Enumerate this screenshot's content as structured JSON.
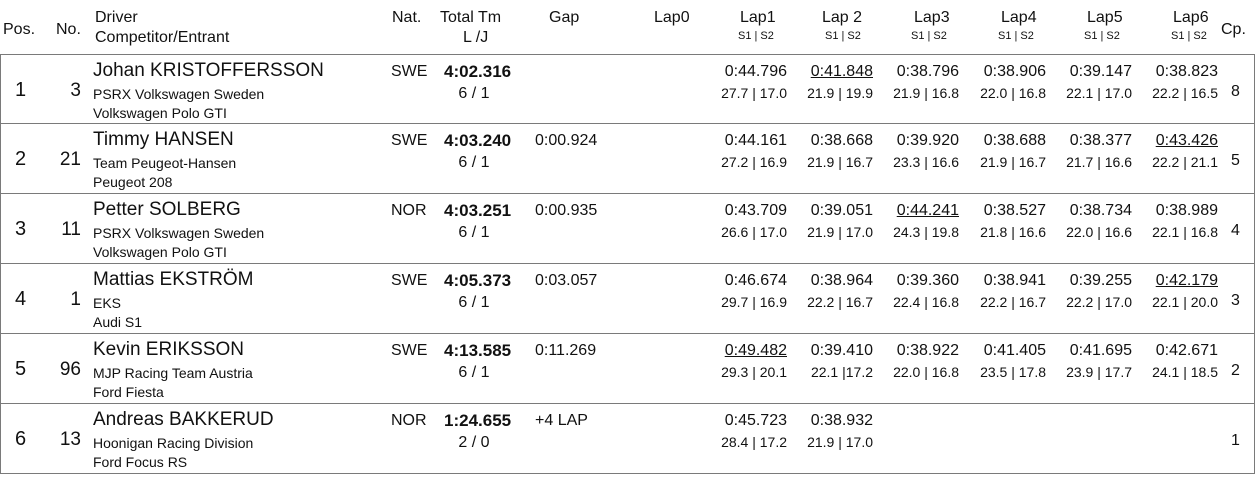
{
  "header": {
    "pos": "Pos.",
    "no": "No.",
    "driver": "Driver",
    "competitor": "Competitor/Entrant",
    "nat": "Nat.",
    "total": "Total Tm",
    "lj": "L /J",
    "gap": "Gap",
    "lap0": "Lap0",
    "laps": [
      "Lap1",
      "Lap 2",
      "Lap3",
      "Lap4",
      "Lap5",
      "Lap6"
    ],
    "split": "S1 | S2",
    "cp": "Cp."
  },
  "rows": [
    {
      "pos": "1",
      "no": "3",
      "driver": "Johan KRISTOFFERSSON",
      "team": "PSRX Volkswagen Sweden",
      "car": "Volkswagen Polo GTI",
      "nat": "SWE",
      "total": "4:02.316",
      "lj": "6 / 1",
      "gap": "",
      "laps": [
        {
          "t": "0:44.796",
          "s": "27.7 | 17.0"
        },
        {
          "t": "0:41.848",
          "s": "21.9 | 19.9",
          "u": true
        },
        {
          "t": "0:38.796",
          "s": "21.9 | 16.8"
        },
        {
          "t": "0:38.906",
          "s": "22.0 | 16.8"
        },
        {
          "t": "0:39.147",
          "s": "22.1 | 17.0"
        },
        {
          "t": "0:38.823",
          "s": "22.2 | 16.5"
        }
      ],
      "cp": "8"
    },
    {
      "pos": "2",
      "no": "21",
      "driver": "Timmy HANSEN",
      "team": "Team Peugeot-Hansen",
      "car": "Peugeot 208",
      "nat": "SWE",
      "total": "4:03.240",
      "lj": "6 / 1",
      "gap": "0:00.924",
      "laps": [
        {
          "t": "0:44.161",
          "s": "27.2 | 16.9"
        },
        {
          "t": "0:38.668",
          "s": "21.9 | 16.7"
        },
        {
          "t": "0:39.920",
          "s": "23.3 | 16.6"
        },
        {
          "t": "0:38.688",
          "s": "21.9 | 16.7"
        },
        {
          "t": "0:38.377",
          "s": "21.7 | 16.6"
        },
        {
          "t": "0:43.426",
          "s": "22.2 | 21.1",
          "u": true
        }
      ],
      "cp": "5"
    },
    {
      "pos": "3",
      "no": "11",
      "driver": "Petter SOLBERG",
      "team": "PSRX Volkswagen Sweden",
      "car": "Volkswagen Polo GTI",
      "nat": "NOR",
      "total": "4:03.251",
      "lj": "6 / 1",
      "gap": "0:00.935",
      "laps": [
        {
          "t": "0:43.709",
          "s": "26.6 | 17.0"
        },
        {
          "t": "0:39.051",
          "s": "21.9 | 17.0"
        },
        {
          "t": "0:44.241",
          "s": "24.3 | 19.8",
          "u": true
        },
        {
          "t": "0:38.527",
          "s": "21.8 | 16.6"
        },
        {
          "t": "0:38.734",
          "s": "22.0 | 16.6"
        },
        {
          "t": "0:38.989",
          "s": "22.1 | 16.8"
        }
      ],
      "cp": "4"
    },
    {
      "pos": "4",
      "no": "1",
      "driver": "Mattias EKSTRÖM",
      "team": "EKS",
      "car": "Audi S1",
      "nat": "SWE",
      "total": "4:05.373",
      "lj": "6 / 1",
      "gap": "0:03.057",
      "laps": [
        {
          "t": "0:46.674",
          "s": "29.7 | 16.9"
        },
        {
          "t": "0:38.964",
          "s": "22.2 | 16.7"
        },
        {
          "t": "0:39.360",
          "s": "22.4 | 16.8"
        },
        {
          "t": "0:38.941",
          "s": "22.2 | 16.7"
        },
        {
          "t": "0:39.255",
          "s": "22.2 | 17.0"
        },
        {
          "t": "0:42.179",
          "s": "22.1 | 20.0",
          "u": true
        }
      ],
      "cp": "3"
    },
    {
      "pos": "5",
      "no": "96",
      "driver": "Kevin ERIKSSON",
      "team": "MJP Racing Team Austria",
      "car": "Ford Fiesta",
      "nat": "SWE",
      "total": "4:13.585",
      "lj": "6 / 1",
      "gap": "0:11.269",
      "laps": [
        {
          "t": "0:49.482",
          "s": "29.3 | 20.1",
          "u": true
        },
        {
          "t": "0:39.410",
          "s": "22.1 |17.2"
        },
        {
          "t": "0:38.922",
          "s": "22.0 | 16.8"
        },
        {
          "t": "0:41.405",
          "s": "23.5 | 17.8"
        },
        {
          "t": "0:41.695",
          "s": "23.9 | 17.7"
        },
        {
          "t": "0:42.671",
          "s": "24.1 | 18.5"
        }
      ],
      "cp": "2"
    },
    {
      "pos": "6",
      "no": "13",
      "driver": "Andreas BAKKERUD",
      "team": "Hoonigan Racing Division",
      "car": "Ford Focus RS",
      "nat": "NOR",
      "total": "1:24.655",
      "lj": "2 / 0",
      "gap": "+4 LAP",
      "laps": [
        {
          "t": "0:45.723",
          "s": "28.4 | 17.2"
        },
        {
          "t": "0:38.932",
          "s": "21.9 | 17.0"
        }
      ],
      "cp": "1"
    }
  ]
}
